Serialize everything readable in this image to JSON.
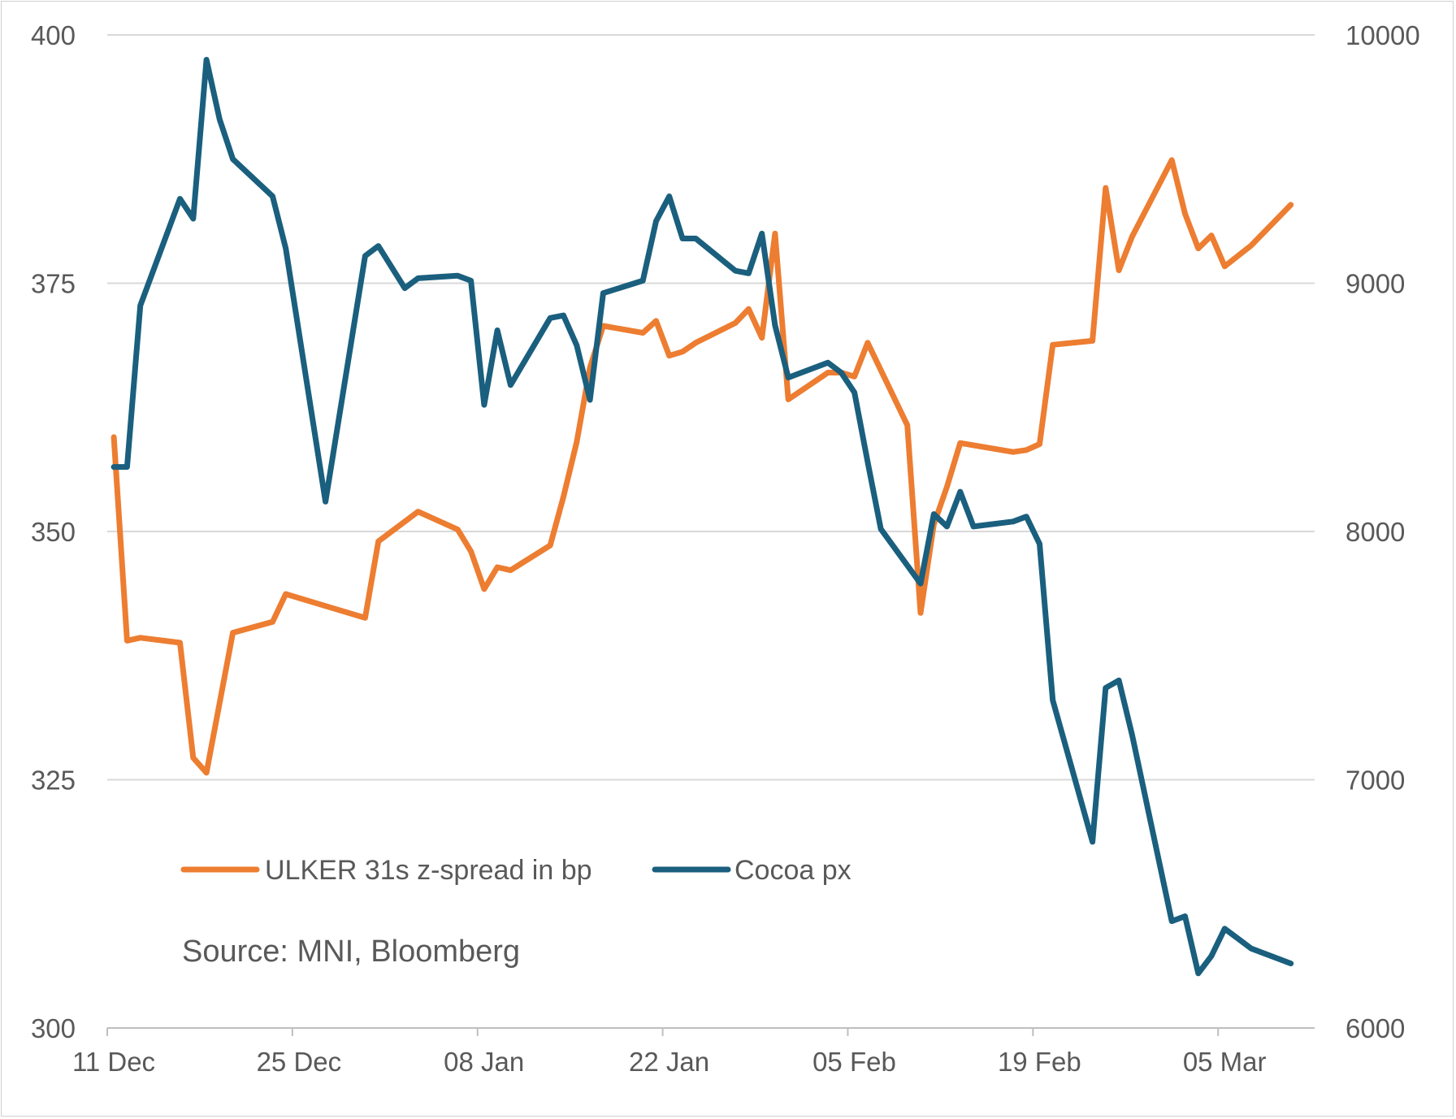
{
  "chart_data": {
    "type": "line",
    "title": "",
    "xlabel": "",
    "ylabel": "",
    "ylabel_right": "",
    "grid": true,
    "legend_position": "lower-left",
    "ylim": [
      300,
      400
    ],
    "ylim_right": [
      6000,
      10000
    ],
    "yticks_left": [
      "400",
      "375",
      "350",
      "325",
      "300"
    ],
    "yticks_right": [
      "10000",
      "9000",
      "8000",
      "7000",
      "6000"
    ],
    "x_ticks": [
      "11 Dec",
      "25 Dec",
      "08 Jan",
      "22 Jan",
      "05 Feb",
      "19 Feb",
      "05 Mar"
    ],
    "x_tick_days": [
      0,
      14,
      28,
      42,
      56,
      70,
      84
    ],
    "source": "Source: MNI, Bloomberg",
    "colors": {
      "spread": "#ED7D31",
      "cocoa": "#1A5F7E",
      "grid": "#D9D9D9",
      "axis": "#BFBFBF",
      "text": "#595959"
    },
    "series": [
      {
        "name": "ULKER 31s z-spread in bp",
        "axis": "left",
        "x": [
          0.5,
          1.5,
          2.5,
          5.5,
          6.5,
          7.5,
          9.5,
          12.5,
          13.5,
          15.5,
          19.5,
          20.5,
          23.5,
          26.5,
          27.5,
          28.5,
          29.5,
          30.5,
          33.5,
          34.5,
          35.5,
          36.5,
          37.5,
          40.5,
          41.5,
          42.5,
          43.5,
          44.5,
          47.5,
          48.5,
          49.5,
          50.5,
          51.5,
          54.5,
          55.5,
          56.5,
          57.5,
          60.5,
          61.5,
          62.5,
          63.5,
          64.5,
          68.5,
          69.5,
          70.5,
          71.5,
          74.5,
          75.5,
          76.5,
          77.5,
          80.5,
          81.5,
          82.5,
          83.5,
          84.5,
          86.5,
          89.5
        ],
        "values": [
          359.5,
          339,
          339.3,
          338.8,
          327.2,
          325.7,
          339.8,
          340.9,
          343.7,
          342.9,
          341.3,
          349.0,
          352.0,
          350.2,
          348.0,
          344.2,
          346.4,
          346.1,
          348.6,
          353.5,
          359.0,
          366.5,
          370.7,
          370.0,
          371.2,
          367.7,
          368.1,
          369.0,
          371.0,
          372.4,
          369.5,
          380.0,
          363.3,
          366.0,
          366.0,
          365.6,
          369.0,
          360.7,
          341.8,
          350.7,
          354.5,
          358.9,
          358.0,
          358.2,
          358.8,
          368.8,
          369.2,
          384.6,
          376.3,
          379.7,
          387.4,
          382.0,
          378.5,
          379.8,
          376.7,
          378.8,
          382.9
        ]
      },
      {
        "name": "Cocoa px",
        "axis": "right",
        "x": [
          0.5,
          1.5,
          2.5,
          5.5,
          6.5,
          7.5,
          8.5,
          9.5,
          12.5,
          13.5,
          16.5,
          19.5,
          20.5,
          22.5,
          23.5,
          26.5,
          27.5,
          28.5,
          29.5,
          30.5,
          33.5,
          34.5,
          35.5,
          36.5,
          37.5,
          40.5,
          41.5,
          42.5,
          43.5,
          44.5,
          47.5,
          48.5,
          49.5,
          50.5,
          51.5,
          54.5,
          55.5,
          56.5,
          57.5,
          58.5,
          61.5,
          62.5,
          63.5,
          64.5,
          65.5,
          68.5,
          69.5,
          70.5,
          71.5,
          74.5,
          75.5,
          76.5,
          77.5,
          80.5,
          81.5,
          82.5,
          83.5,
          84.5,
          86.5,
          89.5
        ],
        "values": [
          8260,
          8260,
          8910,
          9340,
          9260,
          9900,
          9660,
          9500,
          9350,
          9140,
          8120,
          9110,
          9150,
          8980,
          9020,
          9030,
          9010,
          8510,
          8810,
          8590,
          8860,
          8870,
          8750,
          8530,
          8960,
          9010,
          9250,
          9350,
          9180,
          9180,
          9050,
          9040,
          9200,
          8830,
          8620,
          8680,
          8640,
          8560,
          8280,
          8010,
          7790,
          8070,
          8020,
          8160,
          8020,
          8040,
          8060,
          7950,
          7320,
          6750,
          7370,
          7400,
          7180,
          6430,
          6450,
          6220,
          6290,
          6400,
          6320,
          6260
        ]
      }
    ]
  }
}
